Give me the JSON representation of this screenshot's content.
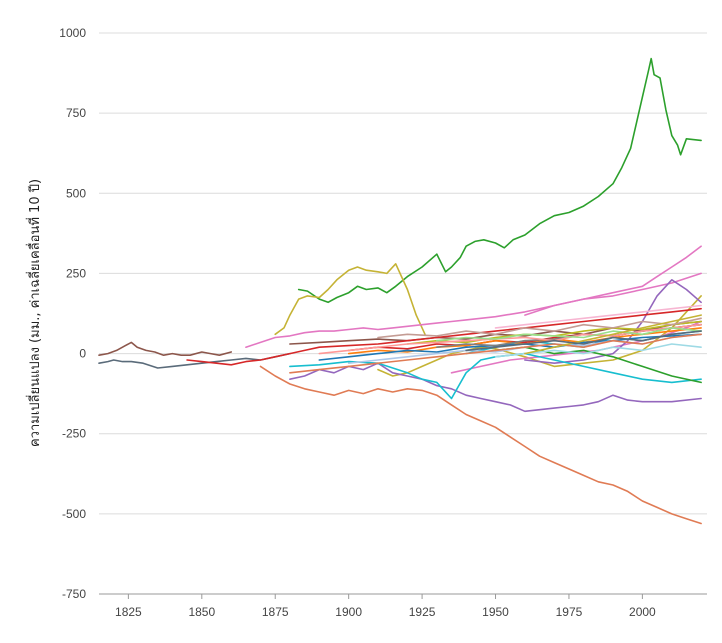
{
  "chart_data": {
    "type": "line",
    "title": "",
    "xlabel": "",
    "ylabel": "ความเปลี่ยนแปลง (มม., ค่าเฉลี่ยเคลื่อนที่ 10 ปี)",
    "xlim": [
      1815,
      2022
    ],
    "ylim": [
      -750,
      1000
    ],
    "x_ticks": [
      1825,
      1850,
      1875,
      1900,
      1925,
      1950,
      1975,
      2000
    ],
    "y_ticks": [
      1000,
      750,
      500,
      250,
      0,
      -250,
      -500,
      -750
    ],
    "x_tick_labels": [
      "1825",
      "1850",
      "1875",
      "1900",
      "1925",
      "1950",
      "1975",
      "2000"
    ],
    "y_tick_labels": [
      "1000",
      "750",
      "500",
      "250",
      "0",
      "-250",
      "-500",
      "-750"
    ],
    "grid": true,
    "legend": "none",
    "series": [
      {
        "color": "#2ca02c",
        "x": [
          1930,
          1933,
          1935,
          1938,
          1940,
          1943,
          1946,
          1950,
          1953,
          1956,
          1960,
          1965,
          1970,
          1975,
          1980,
          1985,
          1990,
          1993,
          1996,
          1998,
          2000,
          2002,
          2003,
          2004,
          2006,
          2008,
          2010,
          2012,
          2013,
          2015,
          2020
        ],
        "y": [
          310,
          255,
          270,
          300,
          335,
          350,
          355,
          345,
          330,
          355,
          370,
          405,
          430,
          440,
          460,
          490,
          530,
          580,
          640,
          720,
          800,
          880,
          920,
          870,
          860,
          760,
          680,
          650,
          620,
          670,
          665
        ]
      },
      {
        "color": "#2ca02c",
        "x": [
          1883,
          1886,
          1890,
          1893,
          1896,
          1900,
          1903,
          1906,
          1910,
          1913,
          1916,
          1920,
          1925,
          1930
        ],
        "y": [
          200,
          195,
          170,
          160,
          175,
          190,
          210,
          200,
          205,
          190,
          210,
          240,
          270,
          310
        ]
      },
      {
        "color": "#e07b54",
        "x": [
          1870,
          1875,
          1880,
          1885,
          1890,
          1895,
          1900,
          1905,
          1910,
          1915,
          1920,
          1925,
          1930,
          1935,
          1940,
          1945,
          1950,
          1955,
          1960,
          1965,
          1970,
          1975,
          1980,
          1985,
          1990,
          1995,
          2000,
          2005,
          2010,
          2015,
          2020
        ],
        "y": [
          -40,
          -70,
          -95,
          -110,
          -120,
          -130,
          -115,
          -125,
          -110,
          -120,
          -110,
          -115,
          -130,
          -160,
          -190,
          -210,
          -230,
          -260,
          -290,
          -320,
          -340,
          -360,
          -380,
          -400,
          -410,
          -430,
          -460,
          -480,
          -500,
          -515,
          -530
        ]
      },
      {
        "color": "#c5b335",
        "x": [
          1875,
          1878,
          1880,
          1883,
          1886,
          1890,
          1893,
          1896,
          1900,
          1903,
          1906,
          1910,
          1913,
          1916,
          1920,
          1923,
          1926
        ],
        "y": [
          60,
          80,
          120,
          170,
          180,
          175,
          200,
          230,
          260,
          270,
          260,
          255,
          250,
          280,
          200,
          120,
          60
        ]
      },
      {
        "color": "#c5b335",
        "x": [
          1910,
          1915,
          1920,
          1925,
          1930,
          1935,
          1940,
          1945,
          1950,
          1960,
          1970,
          1980,
          1990,
          2000,
          2010,
          2020
        ],
        "y": [
          -50,
          -70,
          -60,
          -40,
          -20,
          0,
          10,
          20,
          15,
          -10,
          -40,
          -30,
          -20,
          10,
          80,
          180
        ]
      },
      {
        "color": "#e377c2",
        "x": [
          1865,
          1870,
          1875,
          1880,
          1885,
          1890,
          1895,
          1900,
          1905,
          1910,
          1915,
          1920,
          1925,
          1930,
          1935,
          1940,
          1945,
          1950,
          1960,
          1970,
          1980,
          1990,
          2000,
          2005,
          2010,
          2015,
          2020
        ],
        "y": [
          20,
          35,
          50,
          55,
          65,
          70,
          70,
          75,
          80,
          75,
          80,
          85,
          90,
          95,
          100,
          105,
          110,
          115,
          130,
          150,
          170,
          190,
          210,
          240,
          270,
          300,
          335
        ]
      },
      {
        "color": "#e377c2",
        "x": [
          1935,
          1945,
          1955,
          1965,
          1975,
          1985,
          1995,
          2005,
          2015,
          2020
        ],
        "y": [
          -60,
          -40,
          -20,
          -10,
          0,
          10,
          30,
          50,
          80,
          100
        ]
      },
      {
        "color": "#e377c2",
        "x": [
          1960,
          1970,
          1980,
          1990,
          2000,
          2010,
          2020
        ],
        "y": [
          120,
          150,
          170,
          180,
          200,
          220,
          250
        ]
      },
      {
        "color": "#9467bd",
        "x": [
          1880,
          1885,
          1890,
          1895,
          1900,
          1905,
          1910,
          1915,
          1920,
          1925,
          1930,
          1935,
          1940,
          1945,
          1950,
          1955,
          1960,
          1965,
          1970,
          1975,
          1980,
          1985,
          1990,
          1995,
          2000,
          2010,
          2020
        ],
        "y": [
          -80,
          -70,
          -50,
          -60,
          -40,
          -50,
          -30,
          -60,
          -70,
          -80,
          -100,
          -110,
          -130,
          -140,
          -150,
          -160,
          -180,
          -175,
          -170,
          -165,
          -160,
          -150,
          -130,
          -145,
          -150,
          -150,
          -140
        ]
      },
      {
        "color": "#9467bd",
        "x": [
          1960,
          1970,
          1980,
          1990,
          1995,
          2000,
          2005,
          2010,
          2015,
          2020
        ],
        "y": [
          -20,
          -30,
          -20,
          0,
          40,
          100,
          180,
          230,
          200,
          160
        ]
      },
      {
        "color": "#17becf",
        "x": [
          1880,
          1890,
          1900,
          1910,
          1920,
          1925,
          1930,
          1935,
          1940,
          1945,
          1950,
          1960,
          1970,
          1980,
          1990,
          2000,
          2010,
          2020
        ],
        "y": [
          -40,
          -35,
          -25,
          -30,
          -60,
          -80,
          -90,
          -140,
          -60,
          -20,
          -10,
          0,
          -20,
          -40,
          -60,
          -80,
          -90,
          -80
        ]
      },
      {
        "color": "#17becf",
        "x": [
          1940,
          1950,
          1960,
          1970,
          1980,
          1990,
          2000,
          2010,
          2020
        ],
        "y": [
          0,
          20,
          40,
          30,
          20,
          50,
          40,
          60,
          70
        ]
      },
      {
        "color": "#5a6b7a",
        "x": [
          1815,
          1818,
          1820,
          1823,
          1826,
          1830,
          1835,
          1840,
          1845,
          1850,
          1855,
          1860,
          1865,
          1870,
          1875,
          1880
        ],
        "y": [
          -30,
          -25,
          -20,
          -25,
          -25,
          -30,
          -45,
          -40,
          -35,
          -30,
          -25,
          -20,
          -15,
          -20,
          -10,
          0
        ]
      },
      {
        "color": "#8c564b",
        "x": [
          1815,
          1818,
          1821,
          1824,
          1826,
          1828,
          1831,
          1834,
          1837,
          1840,
          1843,
          1846,
          1850,
          1853,
          1856,
          1860
        ],
        "y": [
          -5,
          0,
          10,
          25,
          35,
          20,
          10,
          5,
          -5,
          0,
          -5,
          -5,
          5,
          0,
          -5,
          5
        ]
      },
      {
        "color": "#8c564b",
        "x": [
          1880,
          1890,
          1900,
          1910,
          1920,
          1930,
          1940,
          1950,
          1960,
          1970,
          1980,
          1990,
          2000,
          2010,
          2020
        ],
        "y": [
          30,
          35,
          40,
          45,
          40,
          50,
          45,
          60,
          55,
          70,
          60,
          80,
          70,
          90,
          100
        ]
      },
      {
        "color": "#d62728",
        "x": [
          1845,
          1850,
          1855,
          1860,
          1865,
          1870,
          1875,
          1880,
          1885,
          1890,
          1900,
          1910,
          1920,
          1930,
          1940,
          1950,
          1960,
          1970,
          1980,
          1990,
          2000,
          2010,
          2020
        ],
        "y": [
          -20,
          -25,
          -30,
          -35,
          -25,
          -20,
          -10,
          0,
          10,
          20,
          25,
          30,
          40,
          50,
          60,
          70,
          80,
          90,
          100,
          110,
          120,
          130,
          140
        ]
      },
      {
        "color": "#d62728",
        "x": [
          1900,
          1910,
          1920,
          1930,
          1940,
          1950,
          1960,
          1970,
          1980,
          1990,
          2000,
          2010,
          2020
        ],
        "y": [
          10,
          20,
          15,
          30,
          25,
          40,
          35,
          50,
          60,
          55,
          70,
          80,
          90
        ]
      },
      {
        "color": "#ff7f0e",
        "x": [
          1900,
          1910,
          1920,
          1930,
          1940,
          1950,
          1960,
          1970,
          1980,
          1990,
          2000,
          2010,
          2020
        ],
        "y": [
          0,
          10,
          5,
          20,
          25,
          40,
          30,
          45,
          35,
          50,
          60,
          70,
          80
        ]
      },
      {
        "color": "#1f77b4",
        "x": [
          1890,
          1900,
          1910,
          1920,
          1930,
          1940,
          1950,
          1960,
          1970,
          1980,
          1990,
          2000,
          2010,
          2020
        ],
        "y": [
          -20,
          -10,
          0,
          10,
          5,
          20,
          25,
          30,
          20,
          35,
          40,
          50,
          55,
          60
        ]
      },
      {
        "color": "#bcbd22",
        "x": [
          1920,
          1930,
          1940,
          1950,
          1960,
          1970,
          1980,
          1990,
          2000,
          2010,
          2020
        ],
        "y": [
          30,
          40,
          35,
          50,
          60,
          55,
          70,
          80,
          75,
          90,
          100
        ]
      },
      {
        "color": "#7f7f7f",
        "x": [
          1930,
          1940,
          1950,
          1960,
          1970,
          1980,
          1990,
          2000,
          2010,
          2020
        ],
        "y": [
          20,
          30,
          25,
          40,
          45,
          60,
          55,
          70,
          80,
          90
        ]
      },
      {
        "color": "#2ca02c",
        "x": [
          1950,
          1960,
          1970,
          1980,
          1990,
          2000,
          2010,
          2020
        ],
        "y": [
          10,
          20,
          0,
          10,
          -10,
          -40,
          -70,
          -90
        ]
      },
      {
        "color": "#ff9896",
        "x": [
          1890,
          1900,
          1910,
          1920,
          1930,
          1940,
          1950,
          1960,
          1970,
          1980,
          1990,
          2000,
          2010,
          2020
        ],
        "y": [
          0,
          10,
          20,
          30,
          35,
          40,
          45,
          50,
          40,
          60,
          55,
          70,
          80,
          90
        ]
      },
      {
        "color": "#aec7e8",
        "x": [
          1900,
          1910,
          1920,
          1930,
          1940,
          1950,
          1960,
          1970,
          1980,
          1990,
          2000,
          2010,
          2020
        ],
        "y": [
          -30,
          -20,
          -10,
          0,
          10,
          5,
          20,
          30,
          25,
          40,
          30,
          50,
          60
        ]
      },
      {
        "color": "#98df8a",
        "x": [
          1930,
          1940,
          1950,
          1960,
          1970,
          1980,
          1990,
          2000,
          2010,
          2020
        ],
        "y": [
          40,
          50,
          45,
          60,
          55,
          50,
          70,
          60,
          80,
          70
        ]
      },
      {
        "color": "#c49c94",
        "x": [
          1910,
          1920,
          1930,
          1940,
          1950,
          1960,
          1970,
          1980,
          1990,
          2000,
          2010,
          2020
        ],
        "y": [
          50,
          60,
          55,
          70,
          60,
          80,
          70,
          90,
          80,
          100,
          90,
          110
        ]
      },
      {
        "color": "#f7b6d2",
        "x": [
          1950,
          1960,
          1970,
          1980,
          1990,
          2000,
          2010,
          2020
        ],
        "y": [
          80,
          90,
          100,
          110,
          120,
          130,
          140,
          150
        ]
      },
      {
        "color": "#9edae5",
        "x": [
          1950,
          1960,
          1970,
          1980,
          1990,
          2000,
          2010,
          2020
        ],
        "y": [
          -10,
          0,
          10,
          0,
          20,
          10,
          30,
          20
        ]
      },
      {
        "color": "#e07b54",
        "x": [
          1880,
          1890,
          1900,
          1910,
          1920,
          1930,
          1940,
          1950,
          1960,
          1970,
          1980,
          1990,
          2000,
          2010,
          2020
        ],
        "y": [
          -60,
          -50,
          -40,
          -30,
          -20,
          -10,
          0,
          10,
          20,
          30,
          20,
          40,
          30,
          50,
          60
        ]
      },
      {
        "color": "#c5b335",
        "x": [
          1960,
          1970,
          1980,
          1990,
          2000,
          2010,
          2020
        ],
        "y": [
          0,
          20,
          40,
          60,
          80,
          100,
          120
        ]
      },
      {
        "color": "#5a6b7a",
        "x": [
          1940,
          1950,
          1960,
          1970,
          1980,
          1990,
          2000,
          2010,
          2020
        ],
        "y": [
          10,
          20,
          30,
          40,
          30,
          50,
          40,
          60,
          70
        ]
      }
    ]
  }
}
